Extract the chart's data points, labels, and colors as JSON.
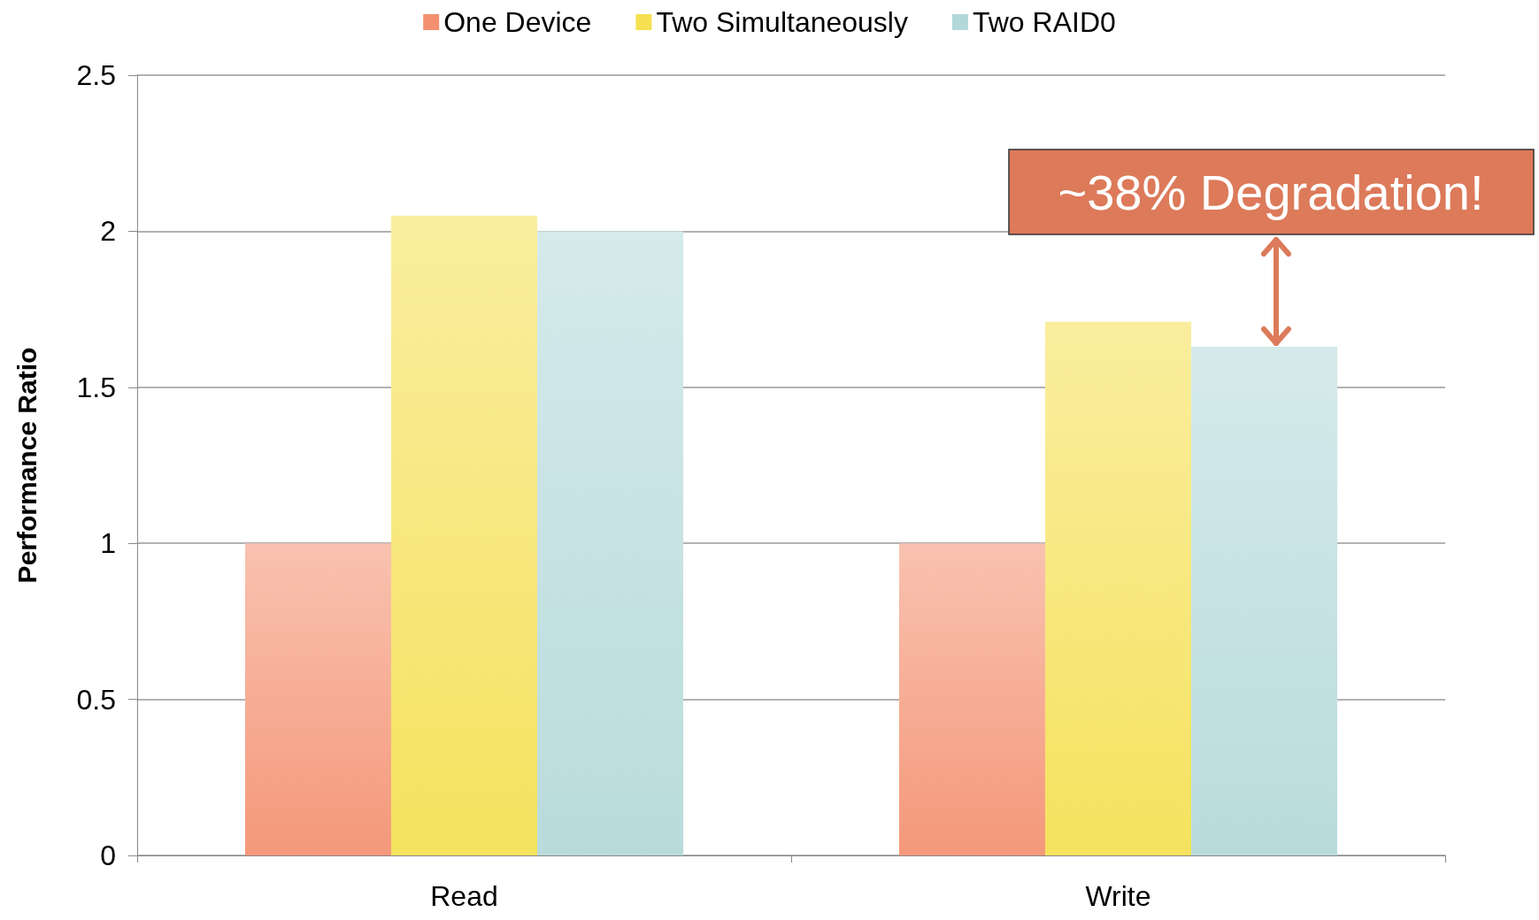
{
  "chart_data": {
    "type": "bar",
    "ylabel": "Performance Ratio",
    "categories": [
      "Read",
      "Write"
    ],
    "series": [
      {
        "name": "One Device",
        "color": "#f4906f",
        "values": [
          1,
          1
        ]
      },
      {
        "name": "Two Simultaneously",
        "color": "#f5e050",
        "values": [
          2.05,
          1.71
        ]
      },
      {
        "name": "Two RAID0",
        "color": "#b3d8da",
        "values": [
          2.0,
          1.63
        ]
      }
    ],
    "ylim": [
      0,
      2.5
    ],
    "yticks": [
      0,
      0.5,
      1,
      1.5,
      2,
      2.5
    ],
    "grid": "y",
    "legend": "top",
    "annotations": [
      "~38% Degradation!"
    ]
  }
}
